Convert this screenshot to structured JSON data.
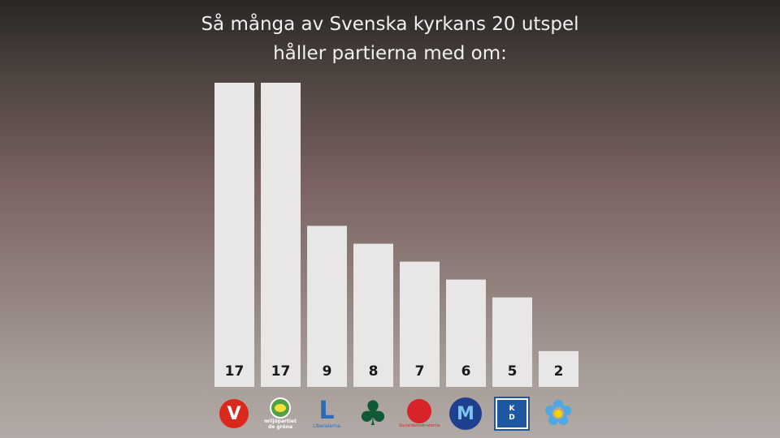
{
  "chart_data": {
    "type": "bar",
    "title": "Så många av Svenska kyrkans 20 utspel håller partierna med om:",
    "title_lines": [
      "Så många av Svenska kyrkans 20 utspel",
      "håller partierna med om:"
    ],
    "values": [
      17,
      17,
      9,
      8,
      7,
      6,
      5,
      2
    ],
    "data_labels": [
      "17",
      "17",
      "9",
      "8",
      "7",
      "6",
      "5",
      "2"
    ],
    "categories": [
      "V",
      "MP",
      "L",
      "C",
      "S",
      "M",
      "KD",
      "SD"
    ],
    "ylim": [
      0,
      17
    ],
    "grid": false,
    "bar_color": "#e8e7e5",
    "label_color": "#1a1a1a"
  },
  "logos": [
    {
      "icon": "v-rose-icon",
      "text": "V",
      "color": "#da291c"
    },
    {
      "icon": "mp-sunflower-icon",
      "text": "miljöpartiet de gröna",
      "color": "#53a045"
    },
    {
      "icon": "l-letter-icon",
      "text": "Liberalerna",
      "color": "#2a6cb6"
    },
    {
      "icon": "c-clover-icon",
      "text": "",
      "color": "#0f5a35"
    },
    {
      "icon": "s-rose-icon",
      "text": "Socialdemokraterna",
      "color": "#d8232a"
    },
    {
      "icon": "m-letter-icon",
      "text": "M",
      "color": "#1f3f8f"
    },
    {
      "icon": "kd-box-icon",
      "text": "KD",
      "color": "#1f57a0"
    },
    {
      "icon": "sd-flower-icon",
      "text": "",
      "color": "#4fa8e0"
    }
  ]
}
